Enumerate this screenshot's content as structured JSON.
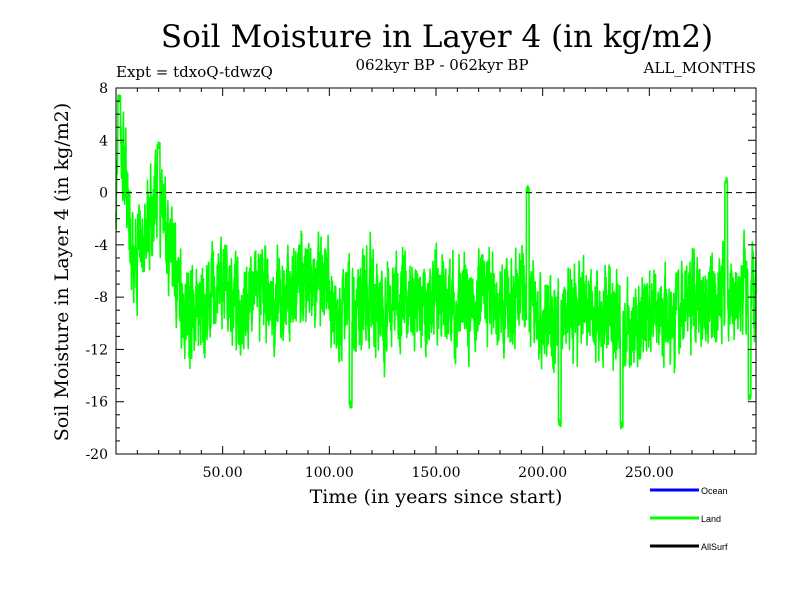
{
  "chart_data": {
    "type": "line",
    "title": "Soil Moisture in Layer 4 (in kg/m2)",
    "subtitle_left": "Expt = tdxoQ-tdwzQ",
    "subtitle_center": "062kyr BP - 062kyr BP",
    "subtitle_right": "ALL_MONTHS",
    "xlabel": "Time (in years since start)",
    "ylabel": "Soil Moisture in Layer 4 (in kg/m2)",
    "xlim": [
      0,
      300
    ],
    "ylim": [
      -20,
      8
    ],
    "x_ticks": [
      50,
      100,
      150,
      200,
      250
    ],
    "x_tick_labels": [
      "50.00",
      "100.00",
      "150.00",
      "200.00",
      "250.00"
    ],
    "y_ticks": [
      -20,
      -16,
      -12,
      -8,
      -4,
      0,
      4,
      8
    ],
    "y_tick_labels": [
      "-20",
      "-16",
      "-12",
      "-8",
      "-4",
      "0",
      "4",
      "8"
    ],
    "reference_line": {
      "y": 0,
      "style": "dashed"
    },
    "legend_placement": "bottom-right",
    "series": [
      {
        "name": "Ocean",
        "color": "#0000ff",
        "values": []
      },
      {
        "name": "Land",
        "color": "#00ff00",
        "sampling": "monthly",
        "x": [
          0,
          2,
          4,
          6,
          8,
          10,
          12,
          15,
          18,
          20,
          22,
          25,
          28,
          30,
          35,
          40,
          45,
          50,
          55,
          60,
          65,
          70,
          75,
          80,
          85,
          90,
          95,
          100,
          105,
          110,
          115,
          120,
          125,
          130,
          135,
          140,
          145,
          150,
          155,
          160,
          165,
          170,
          175,
          180,
          185,
          190,
          195,
          200,
          205,
          210,
          215,
          220,
          225,
          230,
          235,
          240,
          245,
          250,
          255,
          260,
          265,
          270,
          275,
          280,
          285,
          290,
          295,
          300
        ],
        "values": [
          0,
          3,
          2,
          -3,
          -5,
          -5,
          -4,
          -2,
          -1,
          -1,
          -2,
          -4,
          -6,
          -8,
          -9,
          -9,
          -8,
          -7,
          -8,
          -9,
          -7,
          -8,
          -9,
          -8,
          -7,
          -6,
          -7,
          -8,
          -9,
          -9,
          -8,
          -8,
          -9,
          -8,
          -8,
          -9,
          -9,
          -8,
          -8,
          -9,
          -9,
          -8,
          -8,
          -9,
          -9,
          -7,
          -8,
          -10,
          -10,
          -9,
          -10,
          -9,
          -9,
          -9,
          -10,
          -11,
          -10,
          -9,
          -9,
          -9,
          -9,
          -8,
          -8,
          -8,
          -8,
          -8,
          -7,
          -7
        ],
        "spread": 3.2,
        "notable_extremes": [
          {
            "x": 1.5,
            "y": 7.2
          },
          {
            "x": 20,
            "y": 3.6
          },
          {
            "x": 110,
            "y": -16.2
          },
          {
            "x": 193,
            "y": 0.3
          },
          {
            "x": 208,
            "y": -17.6
          },
          {
            "x": 237,
            "y": -17.8
          },
          {
            "x": 286,
            "y": 0.9
          },
          {
            "x": 297,
            "y": -15.6
          }
        ]
      },
      {
        "name": "AllSurf",
        "color": "#000000",
        "values": []
      }
    ]
  }
}
